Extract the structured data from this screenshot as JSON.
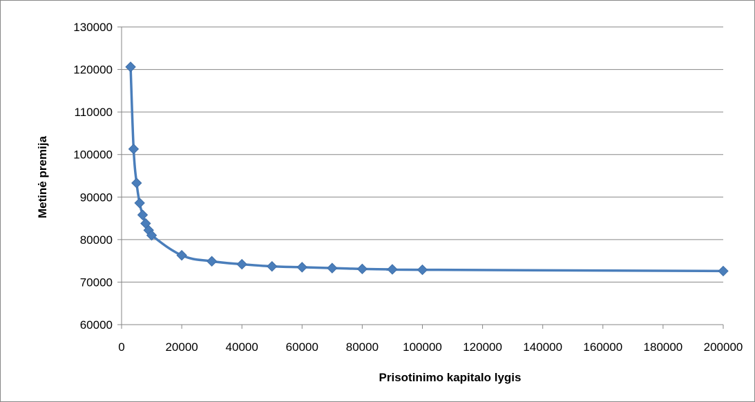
{
  "chart_data": {
    "type": "line",
    "title": "",
    "xlabel": "Prisotinimo kapitalo lygis",
    "ylabel": "Metinė premija",
    "xlim": [
      0,
      200000
    ],
    "ylim": [
      60000,
      130000
    ],
    "xticks": [
      0,
      20000,
      40000,
      60000,
      80000,
      100000,
      120000,
      140000,
      160000,
      180000,
      200000
    ],
    "yticks": [
      60000,
      70000,
      80000,
      90000,
      100000,
      110000,
      120000,
      130000
    ],
    "grid": "horizontal",
    "legend": "none",
    "marker": "diamond",
    "smooth": true,
    "color": "#4a7ebb",
    "series": [
      {
        "x": [
          3000,
          4000,
          5000,
          6000,
          7000,
          8000,
          9000,
          10000,
          20000,
          30000,
          40000,
          50000,
          60000,
          70000,
          80000,
          90000,
          100000,
          200000
        ],
        "y": [
          120600,
          101300,
          93300,
          88600,
          85800,
          83800,
          82200,
          81000,
          76300,
          74900,
          74200,
          73700,
          73500,
          73300,
          73100,
          73000,
          72900,
          72600
        ]
      }
    ]
  }
}
